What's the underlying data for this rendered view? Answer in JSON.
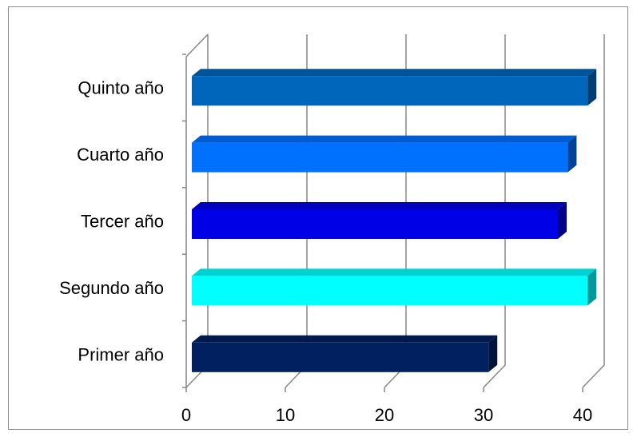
{
  "chart_data": {
    "type": "bar",
    "orientation": "horizontal",
    "style": "3d",
    "title": "",
    "xlabel": "",
    "ylabel": "",
    "categories": [
      "Primer año",
      "Segundo año",
      "Tercer año",
      "Cuarto año",
      "Quinto año"
    ],
    "values": [
      30.5,
      40.5,
      37.5,
      38.5,
      40.5
    ],
    "colors": [
      "#00205f",
      "#00ffff",
      "#0000e6",
      "#0070ff",
      "#0066bb"
    ],
    "xlim": [
      0,
      40
    ],
    "xticks": [
      "0",
      "10",
      "20",
      "30",
      "40"
    ],
    "grid": true,
    "legend": "none"
  }
}
